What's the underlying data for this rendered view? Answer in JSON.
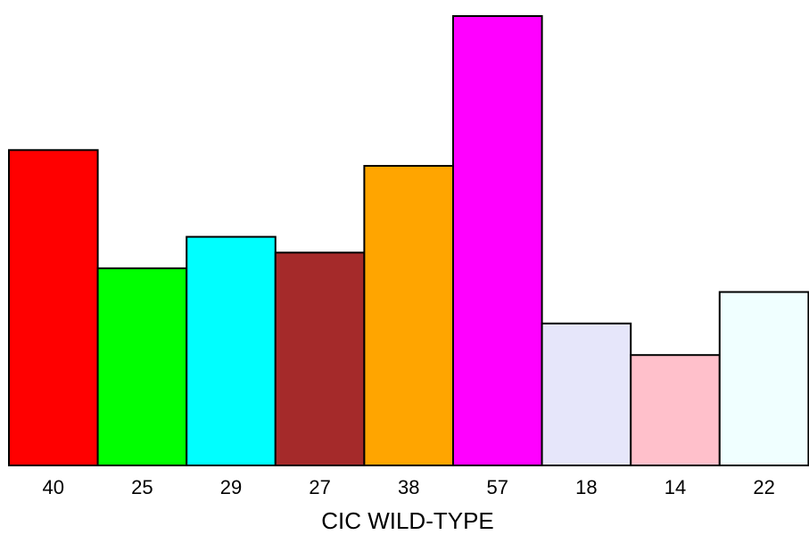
{
  "chart_data": {
    "type": "bar",
    "xlabel": "CIC WILD-TYPE",
    "ylabel": "",
    "ylim": [
      0,
      57
    ],
    "grid": false,
    "legend": "none",
    "categories": [
      "40",
      "25",
      "29",
      "27",
      "38",
      "57",
      "18",
      "14",
      "22"
    ],
    "values": [
      40,
      25,
      29,
      27,
      38,
      57,
      18,
      14,
      22
    ],
    "colors": [
      "#ff0000",
      "#00ff00",
      "#00ffff",
      "#a52a2a",
      "#ffa500",
      "#ff00ff",
      "#e6e6fa",
      "#ffc0cb",
      "#f0ffff"
    ]
  }
}
